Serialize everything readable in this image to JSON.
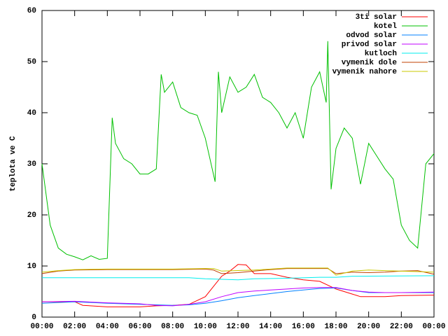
{
  "chart_data": {
    "type": "line",
    "y_label": "teplota ve C",
    "xlim": [
      0,
      24
    ],
    "ylim": [
      0,
      60
    ],
    "yticks": [
      0,
      10,
      20,
      30,
      40,
      50,
      60
    ],
    "xticks": [
      {
        "value": 0,
        "label": "00:00"
      },
      {
        "value": 2,
        "label": "02:00"
      },
      {
        "value": 4,
        "label": "04:00"
      },
      {
        "value": 6,
        "label": "06:00"
      },
      {
        "value": 8,
        "label": "08:00"
      },
      {
        "value": 10,
        "label": "10:00"
      },
      {
        "value": 12,
        "label": "12:00"
      },
      {
        "value": 14,
        "label": "14:00"
      },
      {
        "value": 16,
        "label": "16:00"
      },
      {
        "value": 18,
        "label": "18:00"
      },
      {
        "value": 20,
        "label": "20:00"
      },
      {
        "value": 22,
        "label": "22:00"
      },
      {
        "value": 24,
        "label": "00:00"
      }
    ],
    "grid": false,
    "legend": "top-right",
    "series": [
      {
        "name": "3ti solar",
        "color": "#ff0000",
        "x": [
          0,
          2,
          2.5,
          4,
          6,
          7,
          8,
          9,
          10,
          10.5,
          11,
          11.5,
          12,
          12.5,
          13,
          14,
          15,
          16,
          17,
          18,
          19,
          19.5,
          21,
          22,
          24
        ],
        "values": [
          3,
          3,
          2.3,
          2,
          2,
          2.2,
          2.3,
          2.5,
          4,
          6,
          8,
          9,
          10.3,
          10.2,
          8.5,
          8.5,
          7.8,
          7.3,
          7,
          5.5,
          4.5,
          4,
          4,
          4.2,
          4.3
        ]
      },
      {
        "name": "kotel",
        "color": "#00c000",
        "x": [
          0,
          0.5,
          1,
          1.5,
          2,
          2.5,
          3,
          3.5,
          4,
          4.3,
          4.5,
          5,
          5.5,
          6,
          6.5,
          7,
          7.3,
          7.5,
          8,
          8.5,
          9,
          9.5,
          10,
          10.6,
          10.8,
          11,
          11.5,
          12,
          12.5,
          13,
          13.5,
          14,
          14.5,
          15,
          15.5,
          16,
          16.5,
          17,
          17.4,
          17.5,
          17.7,
          18,
          18.5,
          19,
          19.5,
          20,
          20.5,
          21,
          21.5,
          22,
          22.5,
          23,
          23.5,
          24
        ],
        "values": [
          30,
          18,
          13.5,
          12.3,
          11.8,
          11.2,
          12,
          11.3,
          11.5,
          39,
          34,
          31,
          30,
          28,
          28,
          29,
          47.5,
          44,
          46,
          41,
          40,
          39.5,
          35,
          26.5,
          48,
          40,
          47,
          44,
          45,
          47.5,
          43,
          42,
          40,
          37,
          40,
          35,
          45,
          48,
          42,
          54,
          25,
          33,
          37,
          35,
          26,
          34,
          31.5,
          29,
          27,
          18,
          15,
          13.5,
          30,
          32
        ]
      },
      {
        "name": "odvod solar",
        "color": "#0080ff",
        "x": [
          0,
          2,
          4,
          6,
          8,
          9,
          10,
          11,
          12,
          13,
          14,
          15,
          16,
          17,
          18,
          19,
          20,
          21,
          22,
          23,
          24
        ],
        "values": [
          2.7,
          3,
          2.7,
          2.5,
          2.3,
          2.4,
          2.7,
          3.2,
          3.8,
          4.2,
          4.6,
          5,
          5.3,
          5.6,
          5.7,
          5.2,
          4.8,
          4.8,
          4.8,
          4.8,
          4.8
        ]
      },
      {
        "name": "privod solar",
        "color": "#c000ff",
        "x": [
          0,
          2,
          4,
          6,
          7,
          8,
          9,
          10,
          11,
          12,
          13,
          14,
          15,
          16,
          17,
          18,
          19,
          20,
          21,
          22,
          24
        ],
        "values": [
          3,
          3.1,
          2.8,
          2.6,
          2.3,
          2.2,
          2.5,
          3,
          4,
          4.8,
          5.1,
          5.3,
          5.5,
          5.7,
          5.8,
          5.8,
          5.2,
          4.9,
          4.8,
          4.8,
          4.9
        ]
      },
      {
        "name": "kutloch",
        "color": "#00eeee",
        "x": [
          0,
          9,
          10,
          12,
          13,
          15,
          17,
          18,
          19,
          24
        ],
        "values": [
          7.7,
          7.7,
          7.5,
          7.3,
          7.5,
          7.6,
          7.8,
          7.8,
          8,
          8.1
        ]
      },
      {
        "name": "vymenik dole",
        "color": "#c04000",
        "x": [
          0,
          1,
          2,
          4,
          8,
          10,
          10.5,
          11,
          12,
          13,
          14,
          15,
          17,
          17.5,
          18,
          19,
          20,
          21,
          22,
          23,
          24
        ],
        "values": [
          8.5,
          9,
          9.2,
          9.3,
          9.3,
          9.4,
          9.2,
          8.5,
          8.7,
          9,
          9.3,
          9.5,
          9.5,
          9.5,
          8.5,
          8.8,
          8.7,
          8.8,
          9,
          9.1,
          8.4
        ]
      },
      {
        "name": "vymenik nahore",
        "color": "#c8c800",
        "x": [
          0,
          1,
          2,
          4,
          8,
          10,
          10.5,
          11,
          13,
          15,
          17.5,
          18,
          19,
          20,
          21,
          24
        ],
        "values": [
          8.8,
          9.1,
          9.3,
          9.4,
          9.4,
          9.5,
          9.5,
          9,
          9.2,
          9.6,
          9.6,
          8.2,
          9,
          9.2,
          9.1,
          8.8
        ]
      }
    ]
  }
}
